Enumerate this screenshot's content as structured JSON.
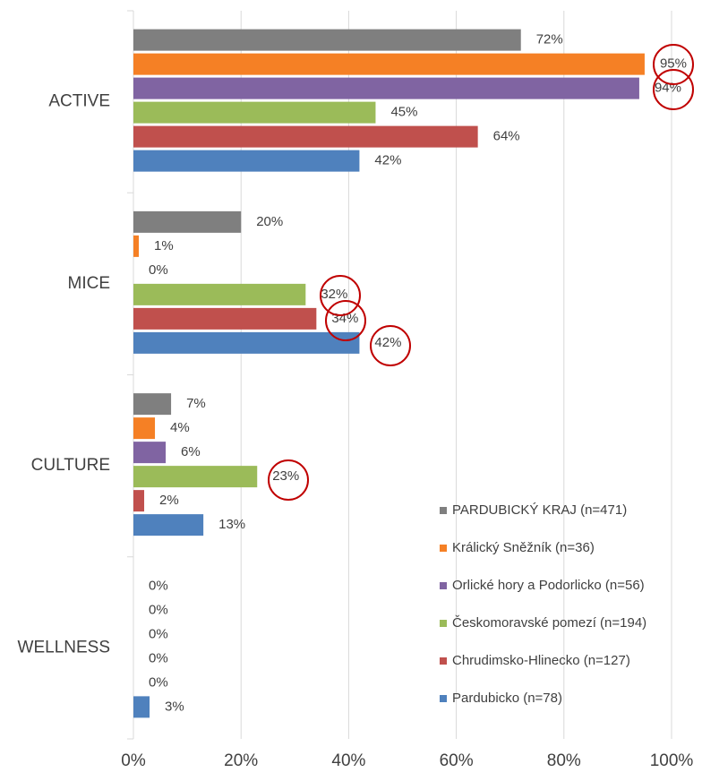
{
  "chart_data": {
    "type": "bar",
    "orientation": "horizontal",
    "categories": [
      "ACTIVE",
      "MICE",
      "CULTURE",
      "WELLNESS"
    ],
    "series": [
      {
        "name": "PARDUBICKÝ KRAJ (n=471)",
        "color": "#7f7f7f",
        "values": [
          72,
          20,
          7,
          0
        ],
        "value_labels": [
          "72%",
          "20%",
          "7%",
          "0%"
        ]
      },
      {
        "name": "Králický Sněžník (n=36)",
        "color": "#f58025",
        "values": [
          95,
          1,
          4,
          0
        ],
        "value_labels": [
          "95%",
          "1%",
          "4%",
          "0%"
        ]
      },
      {
        "name": "Orlické hory a Podorlicko (n=56)",
        "color": "#8064a2",
        "values": [
          94,
          0,
          6,
          0
        ],
        "value_labels": [
          "94%",
          "0%",
          "6%",
          "0%"
        ]
      },
      {
        "name": "Českomoravské pomezí (n=194)",
        "color": "#9bbb59",
        "values": [
          45,
          32,
          23,
          0
        ],
        "value_labels": [
          "45%",
          "32%",
          "23%",
          "0%"
        ]
      },
      {
        "name": "Chrudimsko-Hlinecko (n=127)",
        "color": "#c0504d",
        "values": [
          64,
          34,
          2,
          0
        ],
        "value_labels": [
          "64%",
          "34%",
          "2%",
          "0%"
        ]
      },
      {
        "name": "Pardubicko (n=78)",
        "color": "#4f81bd",
        "values": [
          42,
          42,
          13,
          3
        ],
        "value_labels": [
          "42%",
          "42%",
          "13%",
          "3%"
        ]
      }
    ],
    "xlim": [
      0,
      100
    ],
    "xticks": [
      {
        "value": 0,
        "label": "0%"
      },
      {
        "value": 20,
        "label": "20%"
      },
      {
        "value": 40,
        "label": "40%"
      },
      {
        "value": 60,
        "label": "60%"
      },
      {
        "value": 80,
        "label": "80%"
      },
      {
        "value": 100,
        "label": "100%"
      }
    ],
    "grid": true,
    "legend": "lower right"
  }
}
